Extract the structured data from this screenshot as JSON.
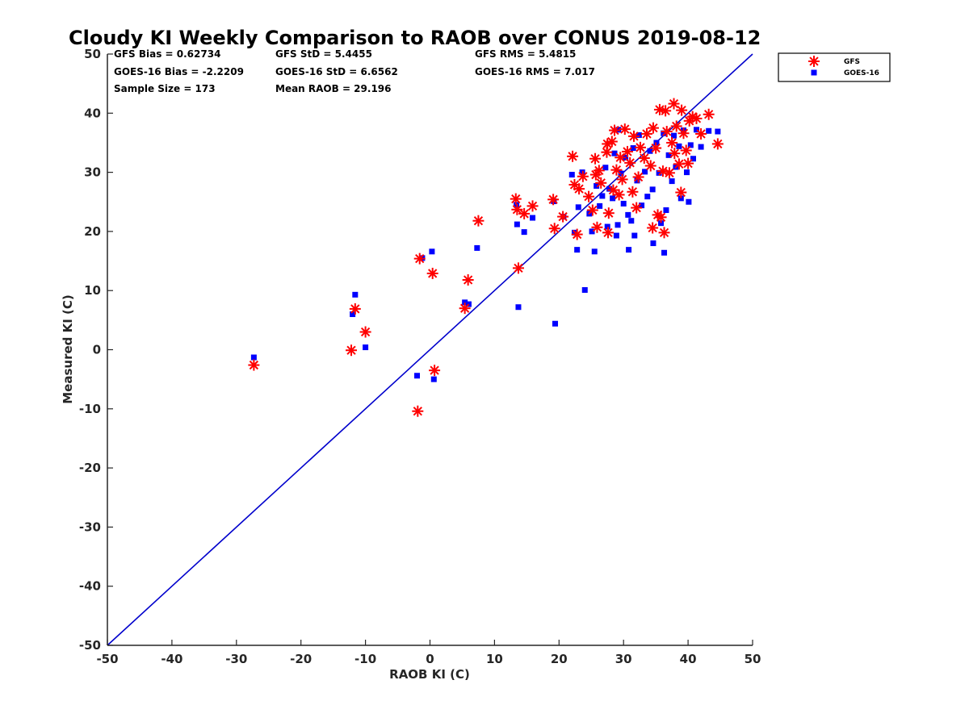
{
  "chart_data": {
    "type": "scatter",
    "title": "Cloudy KI Weekly Comparison to RAOB over CONUS 2019-08-12",
    "xlabel": "RAOB KI (C)",
    "ylabel": "Measured KI (C)",
    "xlim": [
      -50,
      50
    ],
    "ylim": [
      -50,
      50
    ],
    "xticks": [
      "-50",
      "-40",
      "-30",
      "-20",
      "-10",
      "0",
      "10",
      "20",
      "30",
      "40",
      "50"
    ],
    "yticks": [
      "-50",
      "-40",
      "-30",
      "-20",
      "-10",
      "0",
      "10",
      "20",
      "30",
      "40",
      "50"
    ],
    "grid": false,
    "legend_position": "top-right, outside plot",
    "reference_line": {
      "x": [
        -50,
        50
      ],
      "y": [
        -50,
        50
      ],
      "color": "#0000cc"
    },
    "stats": [
      [
        "GFS Bias = 0.62734",
        "GFS StD = 5.4455",
        "GFS RMS = 5.4815"
      ],
      [
        "GOES-16 Bias = -2.2209",
        "GOES-16 StD = 6.6562",
        "GOES-16 RMS = 7.017"
      ],
      [
        "Sample Size = 173",
        "Mean RAOB = 29.196",
        ""
      ]
    ],
    "series": [
      {
        "name": "GFS",
        "color": "#ff0000",
        "marker": "asterisk",
        "points": [
          [
            -27.3,
            -2.6
          ],
          [
            -12.2,
            -0.1
          ],
          [
            -11.6,
            6.9
          ],
          [
            -10,
            3
          ],
          [
            -1.6,
            15.4
          ],
          [
            0.4,
            12.9
          ],
          [
            0.7,
            -3.5
          ],
          [
            -1.9,
            -10.4
          ],
          [
            5.4,
            7
          ],
          [
            5.9,
            11.8
          ],
          [
            7.5,
            21.8
          ],
          [
            13.3,
            25.5
          ],
          [
            13.7,
            13.8
          ],
          [
            13.5,
            23.7
          ],
          [
            14.6,
            23
          ],
          [
            15.9,
            24.3
          ],
          [
            19.1,
            25.4
          ],
          [
            19.3,
            20.5
          ],
          [
            20.6,
            22.5
          ],
          [
            22.1,
            32.7
          ],
          [
            22.4,
            27.9
          ],
          [
            22.8,
            19.5
          ],
          [
            23.1,
            27.2
          ],
          [
            23.7,
            29.3
          ],
          [
            24.6,
            25.9
          ],
          [
            25.2,
            23.6
          ],
          [
            25.6,
            32.3
          ],
          [
            25.7,
            29.6
          ],
          [
            25.9,
            20.7
          ],
          [
            26.2,
            30.3
          ],
          [
            26.5,
            28.2
          ],
          [
            27.4,
            33.4
          ],
          [
            27.5,
            34.8
          ],
          [
            27.6,
            19.8
          ],
          [
            27.7,
            23.1
          ],
          [
            28.2,
            35.2
          ],
          [
            28.4,
            27
          ],
          [
            28.6,
            37.1
          ],
          [
            28.9,
            30.4
          ],
          [
            29.3,
            26.2
          ],
          [
            29.5,
            32.5
          ],
          [
            29.8,
            28.8
          ],
          [
            30.2,
            37.3
          ],
          [
            30.6,
            33.5
          ],
          [
            31,
            31.6
          ],
          [
            31.4,
            26.7
          ],
          [
            31.6,
            36.1
          ],
          [
            32,
            24
          ],
          [
            32.3,
            29.2
          ],
          [
            32.6,
            34.2
          ],
          [
            33.2,
            32.4
          ],
          [
            33.6,
            36.5
          ],
          [
            34.2,
            31.1
          ],
          [
            34.5,
            20.6
          ],
          [
            34.6,
            37.5
          ],
          [
            35,
            34.1
          ],
          [
            35.3,
            22.8
          ],
          [
            35.6,
            40.6
          ],
          [
            35.8,
            22.4
          ],
          [
            36.1,
            30.2
          ],
          [
            36.3,
            19.8
          ],
          [
            36.5,
            40.4
          ],
          [
            36.7,
            36.9
          ],
          [
            37.1,
            29.9
          ],
          [
            37.5,
            35
          ],
          [
            37.8,
            41.6
          ],
          [
            37.9,
            33.2
          ],
          [
            38.2,
            37.8
          ],
          [
            38.6,
            31.4
          ],
          [
            38.9,
            26.6
          ],
          [
            39,
            40.5
          ],
          [
            39.3,
            36.6
          ],
          [
            39.7,
            33.7
          ],
          [
            40,
            31.5
          ],
          [
            40.2,
            38.7
          ],
          [
            40.7,
            39.4
          ],
          [
            41.3,
            39.1
          ],
          [
            42,
            36.5
          ],
          [
            43.2,
            39.8
          ],
          [
            44.6,
            34.8
          ]
        ]
      },
      {
        "name": "GOES-16",
        "color": "#0000ff",
        "marker": "square",
        "points": [
          [
            -27.3,
            -1.3
          ],
          [
            -12,
            6
          ],
          [
            -11.6,
            9.3
          ],
          [
            -10,
            0.4
          ],
          [
            -2,
            -4.4
          ],
          [
            -1.2,
            15.5
          ],
          [
            0.3,
            16.6
          ],
          [
            0.6,
            -5
          ],
          [
            5.4,
            8
          ],
          [
            6,
            7.7
          ],
          [
            7.3,
            17.2
          ],
          [
            13.5,
            21.2
          ],
          [
            13.7,
            7.2
          ],
          [
            13.4,
            24.5
          ],
          [
            14.6,
            19.9
          ],
          [
            15.9,
            22.3
          ],
          [
            19.2,
            25.1
          ],
          [
            19.4,
            4.4
          ],
          [
            20.7,
            22.5
          ],
          [
            22,
            29.6
          ],
          [
            22.4,
            19.8
          ],
          [
            22.8,
            16.9
          ],
          [
            23,
            24.1
          ],
          [
            23.6,
            30
          ],
          [
            24,
            10.1
          ],
          [
            24.7,
            23
          ],
          [
            25.1,
            20
          ],
          [
            25.5,
            16.6
          ],
          [
            25.8,
            27.7
          ],
          [
            26.3,
            24.3
          ],
          [
            26.7,
            26
          ],
          [
            27.2,
            30.8
          ],
          [
            27.5,
            20.8
          ],
          [
            27.8,
            27.2
          ],
          [
            28.3,
            25.6
          ],
          [
            28.6,
            33.2
          ],
          [
            28.9,
            19.3
          ],
          [
            29.1,
            21.1
          ],
          [
            29.2,
            37.2
          ],
          [
            29.6,
            29.8
          ],
          [
            30,
            24.7
          ],
          [
            30.3,
            32.5
          ],
          [
            30.7,
            22.8
          ],
          [
            30.8,
            16.9
          ],
          [
            31.2,
            21.8
          ],
          [
            31.5,
            34.1
          ],
          [
            31.7,
            19.3
          ],
          [
            32.1,
            28.6
          ],
          [
            32.4,
            36.3
          ],
          [
            32.8,
            24.4
          ],
          [
            33.3,
            30.1
          ],
          [
            33.7,
            25.9
          ],
          [
            34.1,
            33.6
          ],
          [
            34.5,
            27.1
          ],
          [
            34.6,
            18
          ],
          [
            35.1,
            35
          ],
          [
            35.5,
            29.9
          ],
          [
            35.8,
            21.4
          ],
          [
            36.2,
            36.6
          ],
          [
            36.3,
            16.4
          ],
          [
            36.6,
            23.6
          ],
          [
            37,
            32.9
          ],
          [
            37.5,
            28.5
          ],
          [
            37.8,
            36.2
          ],
          [
            38.1,
            30.9
          ],
          [
            38.6,
            34.4
          ],
          [
            38.9,
            25.6
          ],
          [
            39.3,
            37.1
          ],
          [
            39.8,
            30
          ],
          [
            40.1,
            25
          ],
          [
            40.4,
            34.6
          ],
          [
            40.8,
            32.3
          ],
          [
            41.3,
            37.2
          ],
          [
            42,
            34.3
          ],
          [
            43.2,
            37
          ],
          [
            44.6,
            36.9
          ]
        ]
      }
    ]
  }
}
